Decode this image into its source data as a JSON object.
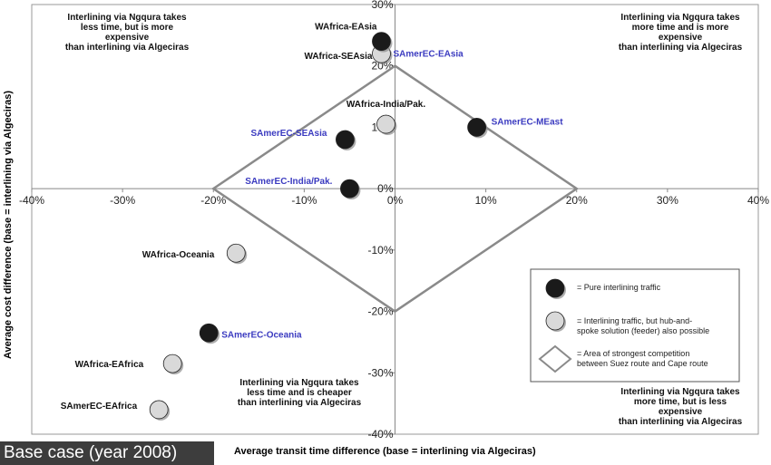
{
  "chart_data": {
    "type": "scatter",
    "xlabel": "Average transit time difference (base = interlining via Algeciras)",
    "ylabel": "Average cost difference  (base = interlining via Algeciras)",
    "xlim": [
      -40,
      40
    ],
    "ylim": [
      -40,
      30
    ],
    "x_ticks": [
      "-40%",
      "-30%",
      "-20%",
      "-10%",
      "0%",
      "10%",
      "20%",
      "30%",
      "40%"
    ],
    "y_ticks": [
      "30%",
      "20%",
      "10%",
      "0%",
      "-10%",
      "-20%",
      "-30%",
      "-40%"
    ],
    "grid": false,
    "quadrant_notes": {
      "top_left": [
        "Interlining via Ngqura takes",
        "less time, but is more",
        "expensive",
        "than interlining via Algeciras"
      ],
      "top_right": [
        "Interlining via Ngqura takes",
        "more time and is more",
        "expensive",
        "than interlining via Algeciras"
      ],
      "bottom_left": [
        "Interlining via Ngqura takes",
        "less time and is cheaper",
        "than interlining via Algeciras"
      ],
      "bottom_right": [
        "Interlining via Ngqura takes",
        "more time, but is less",
        "expensive",
        "than interlining via Algeciras"
      ]
    },
    "series": [
      {
        "name": "= Pure interlining traffic",
        "color": "#1a1a1a",
        "points": [
          {
            "label": "WAfrica-EAsia",
            "x": -1.5,
            "y": 24
          },
          {
            "label": "SAmerEC-MEast",
            "x": 9,
            "y": 10
          },
          {
            "label": "SAmerEC-SEAsia",
            "x": -5.5,
            "y": 8
          },
          {
            "label": "SAmerEC-India/Pak.",
            "x": -5,
            "y": 0
          },
          {
            "label": "SAmerEC-Oceania",
            "x": -20.5,
            "y": -23.5
          }
        ]
      },
      {
        "name": "= Interlining traffic, but hub-and-spoke solution (feeder) also possible",
        "color": "#d9d9d9",
        "points": [
          {
            "label": "WAfrica-SEAsia",
            "x": -1.5,
            "y": 22
          },
          {
            "label": "WAfrica-India/Pak.",
            "x": -1,
            "y": 10.5
          },
          {
            "label": "WAfrica-Oceania",
            "x": -17.5,
            "y": -10.5
          },
          {
            "label": "WAfrica-EAfrica",
            "x": -24.5,
            "y": -28.5
          },
          {
            "label": "SAmerEC-EAfrica",
            "x": -26,
            "y": -36
          }
        ]
      }
    ],
    "extra_point_labels": [
      {
        "label": "SAmerEC-EAsia",
        "color": "#3b3bc0"
      }
    ],
    "area": {
      "name": "= Area of strongest competition between Suez route and Cape route",
      "vertices": [
        [
          0,
          20
        ],
        [
          20,
          0
        ],
        [
          0,
          -20
        ],
        [
          -20,
          0
        ]
      ]
    },
    "legend": {
      "placement": "bottom-right",
      "entries": [
        "= Pure interlining traffic",
        "= Interlining traffic, but hub-and-spoke solution (feeder) also possible",
        "= Area of strongest competition between Suez route and Cape route"
      ]
    },
    "badge": "Base case (year 2008)"
  }
}
